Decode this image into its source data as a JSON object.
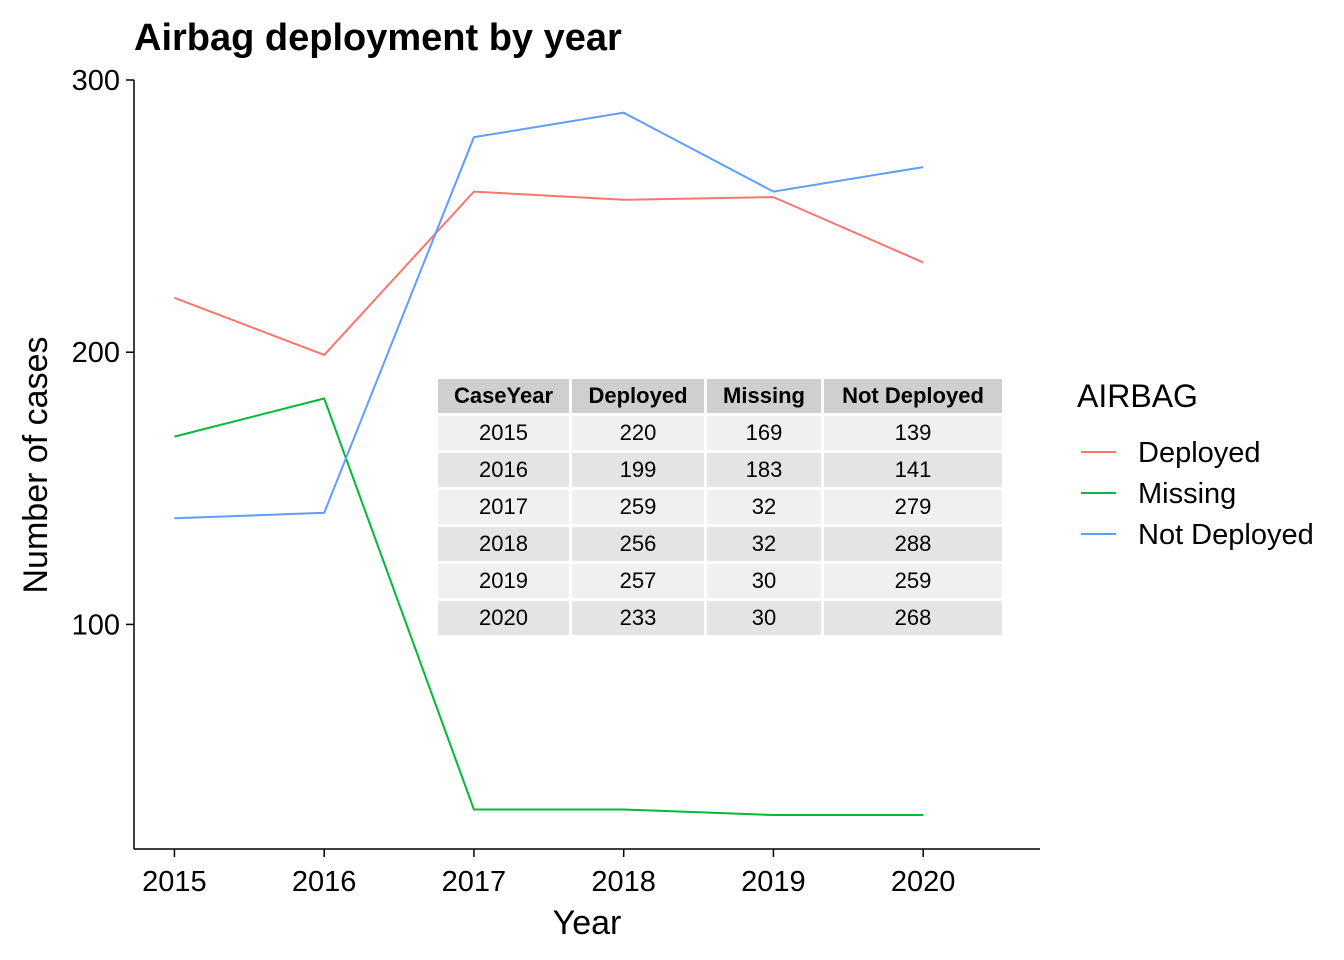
{
  "chart_data": {
    "type": "line",
    "title": "Airbag deployment by year",
    "xlabel": "Year",
    "ylabel": "Number of cases",
    "x": [
      2015,
      2016,
      2017,
      2018,
      2019,
      2020
    ],
    "x_tick_labels": [
      "2015",
      "2016",
      "2017",
      "2018",
      "2019",
      "2020"
    ],
    "y_ticks": [
      100,
      200,
      300
    ],
    "y_tick_labels": [
      "100",
      "200",
      "300"
    ],
    "xlim": [
      2014.73,
      2020.78
    ],
    "ylim": [
      17.5,
      300
    ],
    "grid": false,
    "legend": {
      "title": "AIRBAG",
      "position": "right"
    },
    "series": [
      {
        "name": "Deployed",
        "color": "#F8766D",
        "values": [
          220,
          199,
          259,
          256,
          257,
          233
        ]
      },
      {
        "name": "Missing",
        "color": "#00BA38",
        "values": [
          169,
          183,
          32,
          32,
          30,
          30
        ]
      },
      {
        "name": "Not Deployed",
        "color": "#619CFF",
        "values": [
          139,
          141,
          279,
          288,
          259,
          268
        ]
      }
    ]
  },
  "table": {
    "headers": [
      "CaseYear",
      "Deployed",
      "Missing",
      "Not Deployed"
    ],
    "rows": [
      [
        "2015",
        "220",
        "169",
        "139"
      ],
      [
        "2016",
        "199",
        "183",
        "141"
      ],
      [
        "2017",
        "259",
        "32",
        "279"
      ],
      [
        "2018",
        "256",
        "32",
        "288"
      ],
      [
        "2019",
        "257",
        "30",
        "259"
      ],
      [
        "2020",
        "233",
        "30",
        "268"
      ]
    ]
  }
}
